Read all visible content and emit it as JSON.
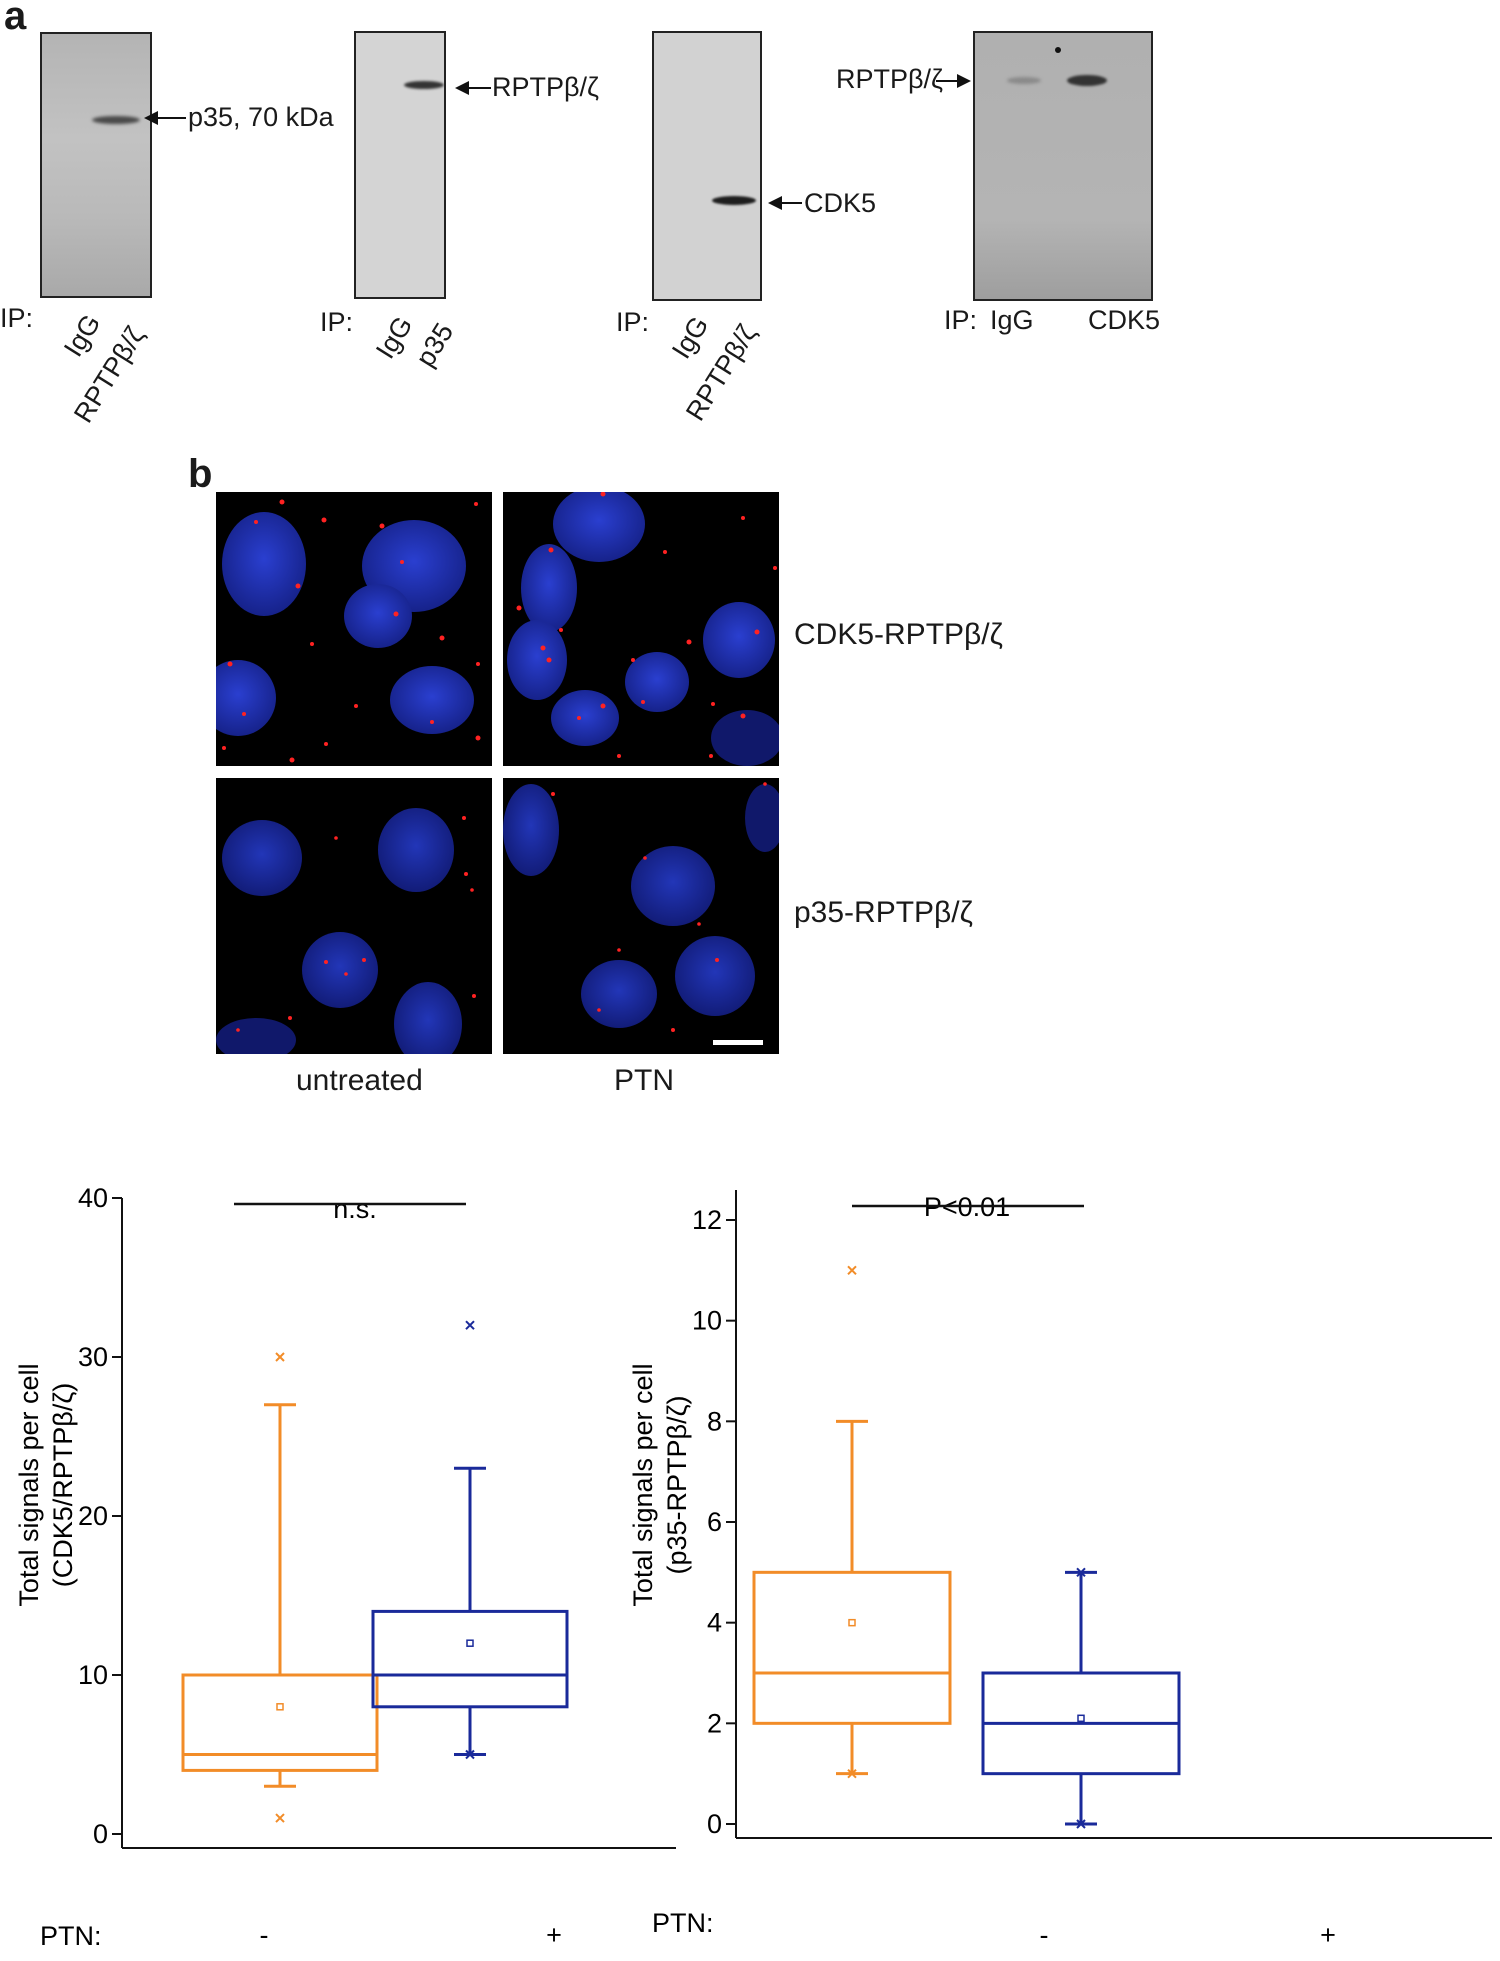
{
  "figure": {
    "panel_a_letter": "a",
    "panel_b_letter": "b",
    "ip_label": "IP:",
    "blots": [
      {
        "lanes": [
          "IgG",
          "RPTPβ/ζ"
        ],
        "band_label": "p35, 70 kDa"
      },
      {
        "lanes": [
          "IgG",
          "p35"
        ],
        "band_label": "RPTPβ/ζ"
      },
      {
        "lanes": [
          "IgG",
          "RPTPβ/ζ"
        ],
        "band_label": "CDK5"
      },
      {
        "lanes": [
          "IgG",
          "CDK5"
        ],
        "band_label": "RPTPβ/ζ"
      }
    ],
    "micro_rows": [
      "CDK5-RPTPβ/ζ",
      "p35-RPTPβ/ζ"
    ],
    "micro_cols": [
      "untreated",
      "PTN"
    ],
    "ptn_label": "PTN:"
  },
  "chart_data": [
    {
      "type": "box",
      "ylabel_line1": "Total signals per cell",
      "ylabel_line2": "(CDK5/RPTPβ/ζ)",
      "ylim": [
        0,
        40
      ],
      "yticks": [
        "0",
        "10",
        "20",
        "30",
        "40"
      ],
      "categories": [
        "-",
        "+"
      ],
      "significance": "n.s.",
      "colors": [
        "#f28c28",
        "#1a2a9a"
      ],
      "boxes": [
        {
          "q1": 4,
          "median": 5,
          "q3": 10,
          "whisker_low": 3,
          "whisker_high": 27,
          "mean": 8,
          "min_outlier": 1,
          "max_outlier": 30
        },
        {
          "q1": 8,
          "median": 10,
          "q3": 14,
          "whisker_low": 5,
          "whisker_high": 23,
          "mean": 12,
          "min_outlier": 5,
          "max_outlier": 32
        }
      ]
    },
    {
      "type": "box",
      "ylabel_line1": "Total signals per cell",
      "ylabel_line2": "(p35-RPTPβ/ζ)",
      "ylim": [
        0,
        12.5
      ],
      "yticks": [
        "0",
        "2",
        "4",
        "6",
        "8",
        "10",
        "12"
      ],
      "categories": [
        "-",
        "+"
      ],
      "significance": "P<0.01",
      "colors": [
        "#f28c28",
        "#1a2a9a"
      ],
      "boxes": [
        {
          "q1": 2,
          "median": 3,
          "q3": 5,
          "whisker_low": 1,
          "whisker_high": 8,
          "mean": 4,
          "min_outlier": 1,
          "max_outlier": 11
        },
        {
          "q1": 1,
          "median": 2,
          "q3": 3,
          "whisker_low": 0,
          "whisker_high": 5,
          "mean": 2.1,
          "min_outlier": 0,
          "max_outlier": 5
        }
      ]
    }
  ]
}
